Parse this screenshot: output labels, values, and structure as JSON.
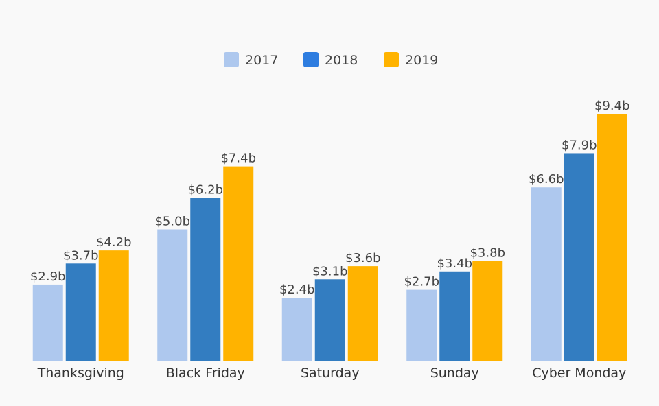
{
  "chart_data": {
    "type": "bar",
    "title": "",
    "xlabel": "",
    "ylabel": "",
    "categories": [
      "Thanksgiving",
      "Black Friday",
      "Saturday",
      "Sunday",
      "Cyber Monday"
    ],
    "series": [
      {
        "name": "2017",
        "color": "#aec8ee",
        "values": [
          2.9,
          5.0,
          2.4,
          2.7,
          6.6
        ],
        "labels": [
          "$2.9b",
          "$5.0b",
          "$2.4b",
          "$2.7b",
          "$6.6b"
        ]
      },
      {
        "name": "2018",
        "color": "#337dc1",
        "values": [
          3.7,
          6.2,
          3.1,
          3.4,
          7.9
        ],
        "labels": [
          "$3.7b",
          "$6.2b",
          "$3.1b",
          "$3.4b",
          "$7.9b"
        ]
      },
      {
        "name": "2019",
        "color": "#ffb300",
        "values": [
          4.2,
          7.4,
          3.6,
          3.8,
          9.4
        ],
        "labels": [
          "$4.2b",
          "$7.4b",
          "$3.6b",
          "$3.8b",
          "$9.4b"
        ]
      }
    ],
    "ylim": [
      0,
      9.4
    ],
    "grid": false,
    "legend_position": "top-center"
  },
  "colors": {
    "background": "#f9f9f9",
    "axis_line": "#c8c8c8",
    "legend_2018_swatch": "#2e7de0"
  }
}
